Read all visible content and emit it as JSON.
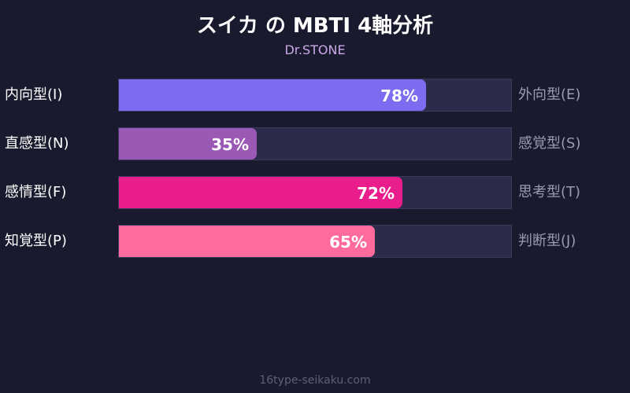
{
  "title": "スイカ の MBTI 4軸分析",
  "subtitle": "Dr.STONE",
  "footer": "16type-seikaku.com",
  "chart_data": {
    "type": "bar",
    "orientation": "horizontal",
    "xlim": [
      0,
      100
    ],
    "categories": [
      "内向型(I)",
      "直感型(N)",
      "感情型(F)",
      "知覚型(P)"
    ],
    "opposite_categories": [
      "外向型(E)",
      "感覚型(S)",
      "思考型(T)",
      "判断型(J)"
    ],
    "values": [
      78,
      35,
      72,
      65
    ],
    "value_labels": [
      "78%",
      "35%",
      "72%",
      "65%"
    ],
    "colors": [
      "#7b6cf0",
      "#9b59b6",
      "#e91e8c",
      "#ff6b9a"
    ],
    "track_color": "#2d2b4a"
  }
}
